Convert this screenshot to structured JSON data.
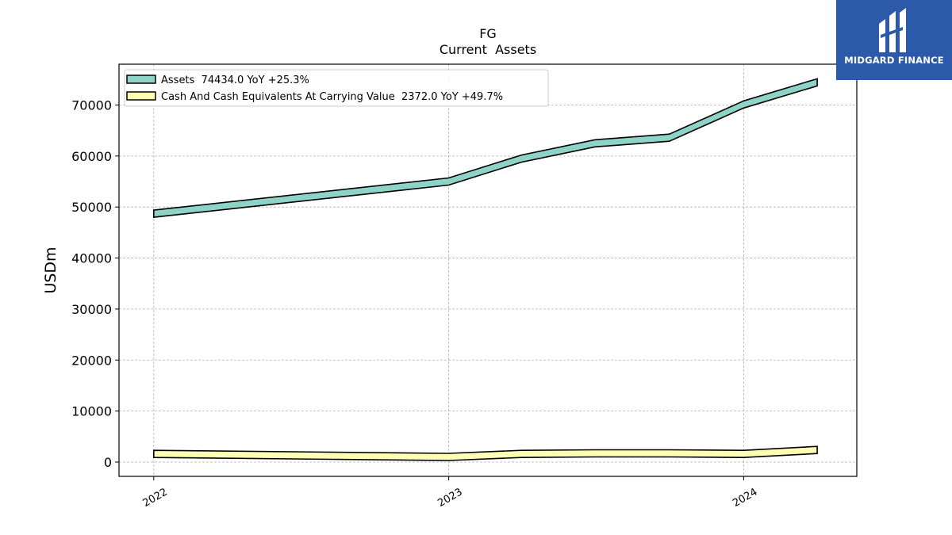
{
  "chart_data": {
    "type": "line",
    "title": "FG",
    "subtitle": "Current  Assets",
    "ylabel": "USDm",
    "xlabel": "",
    "ylim": [
      -2800,
      78000
    ],
    "yticks": [
      0,
      10000,
      20000,
      30000,
      40000,
      50000,
      60000,
      70000
    ],
    "xlim": [
      "2021-11-19",
      "2024-05-20"
    ],
    "xticks": [
      {
        "date": "2022-01-01",
        "label": "2022"
      },
      {
        "date": "2023-01-01",
        "label": "2023"
      },
      {
        "date": "2024-01-01",
        "label": "2024"
      }
    ],
    "grid": true,
    "legend_position": "top-left",
    "series": [
      {
        "name": "Assets  74434.0 YoY +25.3%",
        "fill": "#8dd3c7",
        "x": [
          "2022-01-01",
          "2023-01-01",
          "2023-04-01",
          "2023-07-01",
          "2023-10-01",
          "2024-01-01",
          "2024-04-01"
        ],
        "values": [
          48700,
          55000,
          59500,
          62500,
          63600,
          70100,
          74434
        ]
      },
      {
        "name": "Cash And Cash Equivalents At Carrying Value  2372.0 YoY +49.7%",
        "fill": "#ffffb3",
        "x": [
          "2022-01-01",
          "2023-01-01",
          "2023-04-01",
          "2023-07-01",
          "2023-10-01",
          "2024-01-01",
          "2024-04-01"
        ],
        "values": [
          1600,
          1000,
          1600,
          1700,
          1700,
          1600,
          2372
        ]
      }
    ]
  },
  "logo": {
    "text": "MIDGARD FINANCE",
    "background": "#2c5aa8"
  }
}
